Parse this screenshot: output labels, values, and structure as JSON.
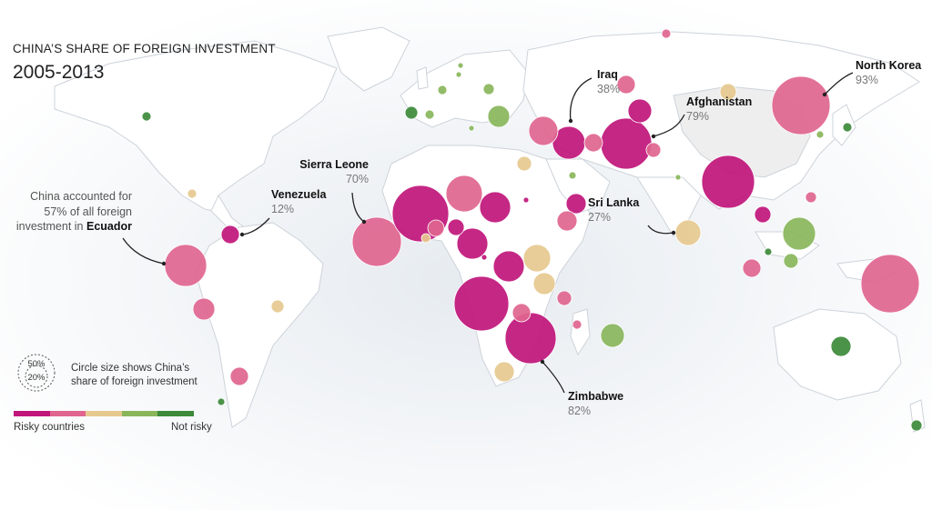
{
  "title": "CHINA’S SHARE OF FOREIGN INVESTMENT",
  "years": "2005-2013",
  "colors": {
    "risk_1": "#c0157a",
    "risk_2": "#e0658f",
    "risk_3": "#e6c98f",
    "risk_4": "#89b65b",
    "risk_5": "#3c8a3a",
    "land": "#ffffff",
    "border": "#cdd3da",
    "ocean": "#e9edf1",
    "china": "#eeeeee"
  },
  "callouts": {
    "iraq": {
      "name": "Iraq",
      "value": "38%"
    },
    "afghanistan": {
      "name": "Afghanistan",
      "value": "79%"
    },
    "north_korea": {
      "name": "North Korea",
      "value": "93%"
    },
    "sierra_leone": {
      "name": "Sierra Leone",
      "value": "70%"
    },
    "venezuela": {
      "name": "Venezuela",
      "value": "12%"
    },
    "sri_lanka": {
      "name": "Sri Lanka",
      "value": "27%"
    },
    "zimbabwe": {
      "name": "Zimbabwe",
      "value": "82%"
    }
  },
  "ecuador_note": {
    "line1": "China accounted for",
    "line2": "57% of all foreign",
    "line3_prefix": "investment in ",
    "line3_bold": "Ecuador"
  },
  "legend": {
    "size_outer": "50%",
    "size_inner": "20%",
    "size_text_1": "Circle size shows China’s",
    "size_text_2": "share of foreign investment",
    "risky_label": "Risky countries",
    "safe_label": "Not risky"
  }
}
